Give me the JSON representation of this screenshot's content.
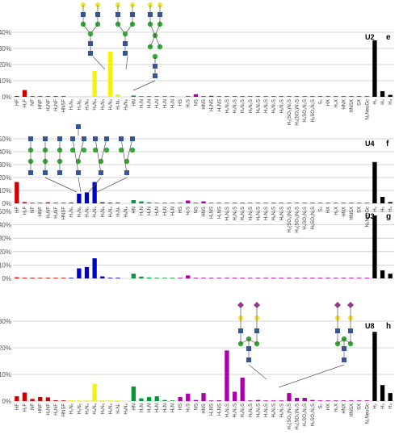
{
  "figure": {
    "y_unit": "%",
    "x_categories": [
      "HF",
      "H₂F",
      "NF",
      "HNF",
      "H₂NF",
      "H₃NF",
      "HNSF",
      "H₂N₂",
      "H₃N₂",
      "H₃N₃",
      "H₄N₄",
      "H₅N₅",
      "H₆N₆",
      "H₇N₇",
      "H₈N₈",
      "HN",
      "H₂N",
      "H₃N",
      "H₄N",
      "H₅N",
      "H₆N",
      "HS",
      "H₂S",
      "NS",
      "HNS",
      "H₂NS",
      "H₃NS",
      "H₂N₂S",
      "H₃N₂S",
      "H₄N₂S",
      "H₅N₂S",
      "H₆N₂S",
      "H₇N₂S",
      "H₈N₂S",
      "H₉N₂S",
      "H₂(SO₃)N₂S",
      "H₃(SO₃)N₂S",
      "H₄SO₃N₂S",
      "H₅SO₃N₂S",
      "S₂",
      "HX",
      "H₂X",
      "HNX",
      "HNSX",
      "SX",
      "N₂NeuGc",
      "H₂",
      "H₃",
      "H₄"
    ]
  },
  "colors": {
    "red": "#cc0000",
    "yellow": "#f2f20a",
    "blue": "#0000c8",
    "green": "#009933",
    "purple": "#aa00aa",
    "black": "#000000",
    "grid": "#c8c8c8",
    "hex_blue": "#3355a0",
    "hex_green": "#33aa33",
    "hex_yellow": "#f5e63c",
    "hex_purple": "#993399"
  },
  "chart_data": [
    {
      "type": "bar",
      "panel_label": "U2",
      "letter": "e",
      "ylim": [
        0,
        40
      ],
      "yticks": [
        "0%",
        "10%",
        "20%",
        "30%",
        "40%"
      ],
      "values": [
        0.5,
        4.2,
        0.3,
        0.4,
        0.4,
        0.3,
        0.1,
        0.1,
        0.1,
        0.3,
        16,
        0.3,
        28,
        1.5,
        0,
        0.8,
        0.2,
        0.3,
        0.2,
        0.1,
        0.1,
        0,
        0.3,
        1.6,
        0.2,
        0.6,
        0.1,
        0.2,
        0.1,
        0.1,
        0.1,
        0.1,
        0.1,
        0.1,
        0.1,
        0.1,
        0.1,
        0.1,
        0.1,
        0.1,
        0.1,
        0.1,
        0.1,
        0.1,
        0.1,
        0.1,
        35,
        3.5,
        1.2
      ],
      "bar_colors": [
        "red",
        "red",
        "red",
        "red",
        "red",
        "red",
        "red",
        "yellow",
        "yellow",
        "yellow",
        "yellow",
        "yellow",
        "yellow",
        "yellow",
        "yellow",
        "green",
        "green",
        "green",
        "green",
        "green",
        "green",
        "purple",
        "purple",
        "purple",
        "purple",
        "purple",
        "purple",
        "purple",
        "purple",
        "purple",
        "purple",
        "purple",
        "purple",
        "purple",
        "purple",
        "purple",
        "purple",
        "purple",
        "purple",
        "purple",
        "purple",
        "purple",
        "purple",
        "purple",
        "purple",
        "purple",
        "black",
        "black",
        "black"
      ]
    },
    {
      "type": "bar",
      "panel_label": "U4",
      "letter": "f",
      "ylim": [
        0,
        50
      ],
      "yticks": [
        "0%",
        "10%",
        "20%",
        "30%",
        "40%",
        "50%"
      ],
      "values": [
        16.5,
        1.0,
        0.3,
        0.4,
        0.8,
        0.4,
        0.1,
        0.2,
        7.5,
        8.5,
        16.5,
        0.8,
        0.3,
        0.1,
        0,
        2.5,
        1.5,
        0.8,
        0.3,
        0.2,
        0.1,
        0.1,
        2.2,
        0.2,
        1.5,
        0.3,
        0.1,
        0.2,
        0.1,
        0.1,
        0.1,
        0.1,
        0.1,
        0.1,
        0.1,
        0.1,
        0.1,
        0.1,
        0.1,
        0.1,
        0.1,
        0.1,
        0.1,
        0.1,
        0.1,
        0.1,
        32,
        5,
        1
      ],
      "bar_colors": [
        "red",
        "red",
        "red",
        "red",
        "red",
        "red",
        "red",
        "blue",
        "blue",
        "blue",
        "blue",
        "blue",
        "blue",
        "blue",
        "blue",
        "green",
        "green",
        "green",
        "green",
        "green",
        "green",
        "purple",
        "purple",
        "purple",
        "purple",
        "purple",
        "purple",
        "purple",
        "purple",
        "purple",
        "purple",
        "purple",
        "purple",
        "purple",
        "purple",
        "purple",
        "purple",
        "purple",
        "purple",
        "purple",
        "purple",
        "purple",
        "purple",
        "purple",
        "purple",
        "purple",
        "black",
        "black",
        "black"
      ]
    },
    {
      "type": "bar",
      "panel_label": "U3",
      "letter": "g",
      "ylim": [
        0,
        50
      ],
      "yticks": [
        "0%",
        "10%",
        "20%",
        "30%",
        "40%",
        "50%"
      ],
      "values": [
        0.8,
        0.5,
        0.3,
        0.3,
        0.4,
        0.4,
        0.2,
        0.2,
        7.5,
        8.5,
        15,
        1.5,
        0.2,
        0.1,
        0,
        3.5,
        1.3,
        0.7,
        0.4,
        0.3,
        0.1,
        0.1,
        2.2,
        0.2,
        0.5,
        0.2,
        0.1,
        0.1,
        0.1,
        0.1,
        0.1,
        0.1,
        0.1,
        0.1,
        0.1,
        0.1,
        0.1,
        0.1,
        0.1,
        0.1,
        0.1,
        0.1,
        0.1,
        0.1,
        0.1,
        0.1,
        47,
        6,
        3.5
      ],
      "bar_colors": [
        "red",
        "red",
        "red",
        "red",
        "red",
        "red",
        "red",
        "blue",
        "blue",
        "blue",
        "blue",
        "blue",
        "blue",
        "blue",
        "blue",
        "green",
        "green",
        "green",
        "green",
        "green",
        "green",
        "purple",
        "purple",
        "purple",
        "purple",
        "purple",
        "purple",
        "purple",
        "purple",
        "purple",
        "purple",
        "purple",
        "purple",
        "purple",
        "purple",
        "purple",
        "purple",
        "purple",
        "purple",
        "purple",
        "purple",
        "purple",
        "purple",
        "purple",
        "purple",
        "purple",
        "black",
        "black",
        "black"
      ]
    },
    {
      "type": "bar",
      "panel_label": "U8",
      "letter": "h",
      "ylim": [
        0,
        30
      ],
      "yticks": [
        "0%",
        "10%",
        "20%",
        "30%"
      ],
      "values": [
        1.8,
        3.2,
        0.8,
        1.5,
        1.4,
        0.3,
        0.1,
        0.3,
        0.2,
        0.2,
        6.5,
        0.2,
        0.1,
        0.1,
        0,
        5.5,
        1.0,
        1.5,
        1.8,
        0.4,
        0.1,
        1.5,
        2.8,
        0.4,
        3.0,
        0.2,
        0.3,
        19,
        3.5,
        8.8,
        0.2,
        0.4,
        0.2,
        0.1,
        0.1,
        3.0,
        1.2,
        1.2,
        0.4,
        0.1,
        0.1,
        0.1,
        0.1,
        0.1,
        0.1,
        0.1,
        26,
        6,
        3
      ],
      "bar_colors": [
        "red",
        "red",
        "red",
        "red",
        "red",
        "red",
        "red",
        "yellow",
        "yellow",
        "yellow",
        "yellow",
        "yellow",
        "yellow",
        "yellow",
        "yellow",
        "green",
        "green",
        "green",
        "green",
        "green",
        "green",
        "purple",
        "purple",
        "purple",
        "purple",
        "purple",
        "purple",
        "purple",
        "purple",
        "purple",
        "purple",
        "purple",
        "purple",
        "purple",
        "purple",
        "purple",
        "purple",
        "purple",
        "purple",
        "purple",
        "purple",
        "purple",
        "purple",
        "purple",
        "purple",
        "purple",
        "black",
        "black",
        "black"
      ]
    }
  ]
}
